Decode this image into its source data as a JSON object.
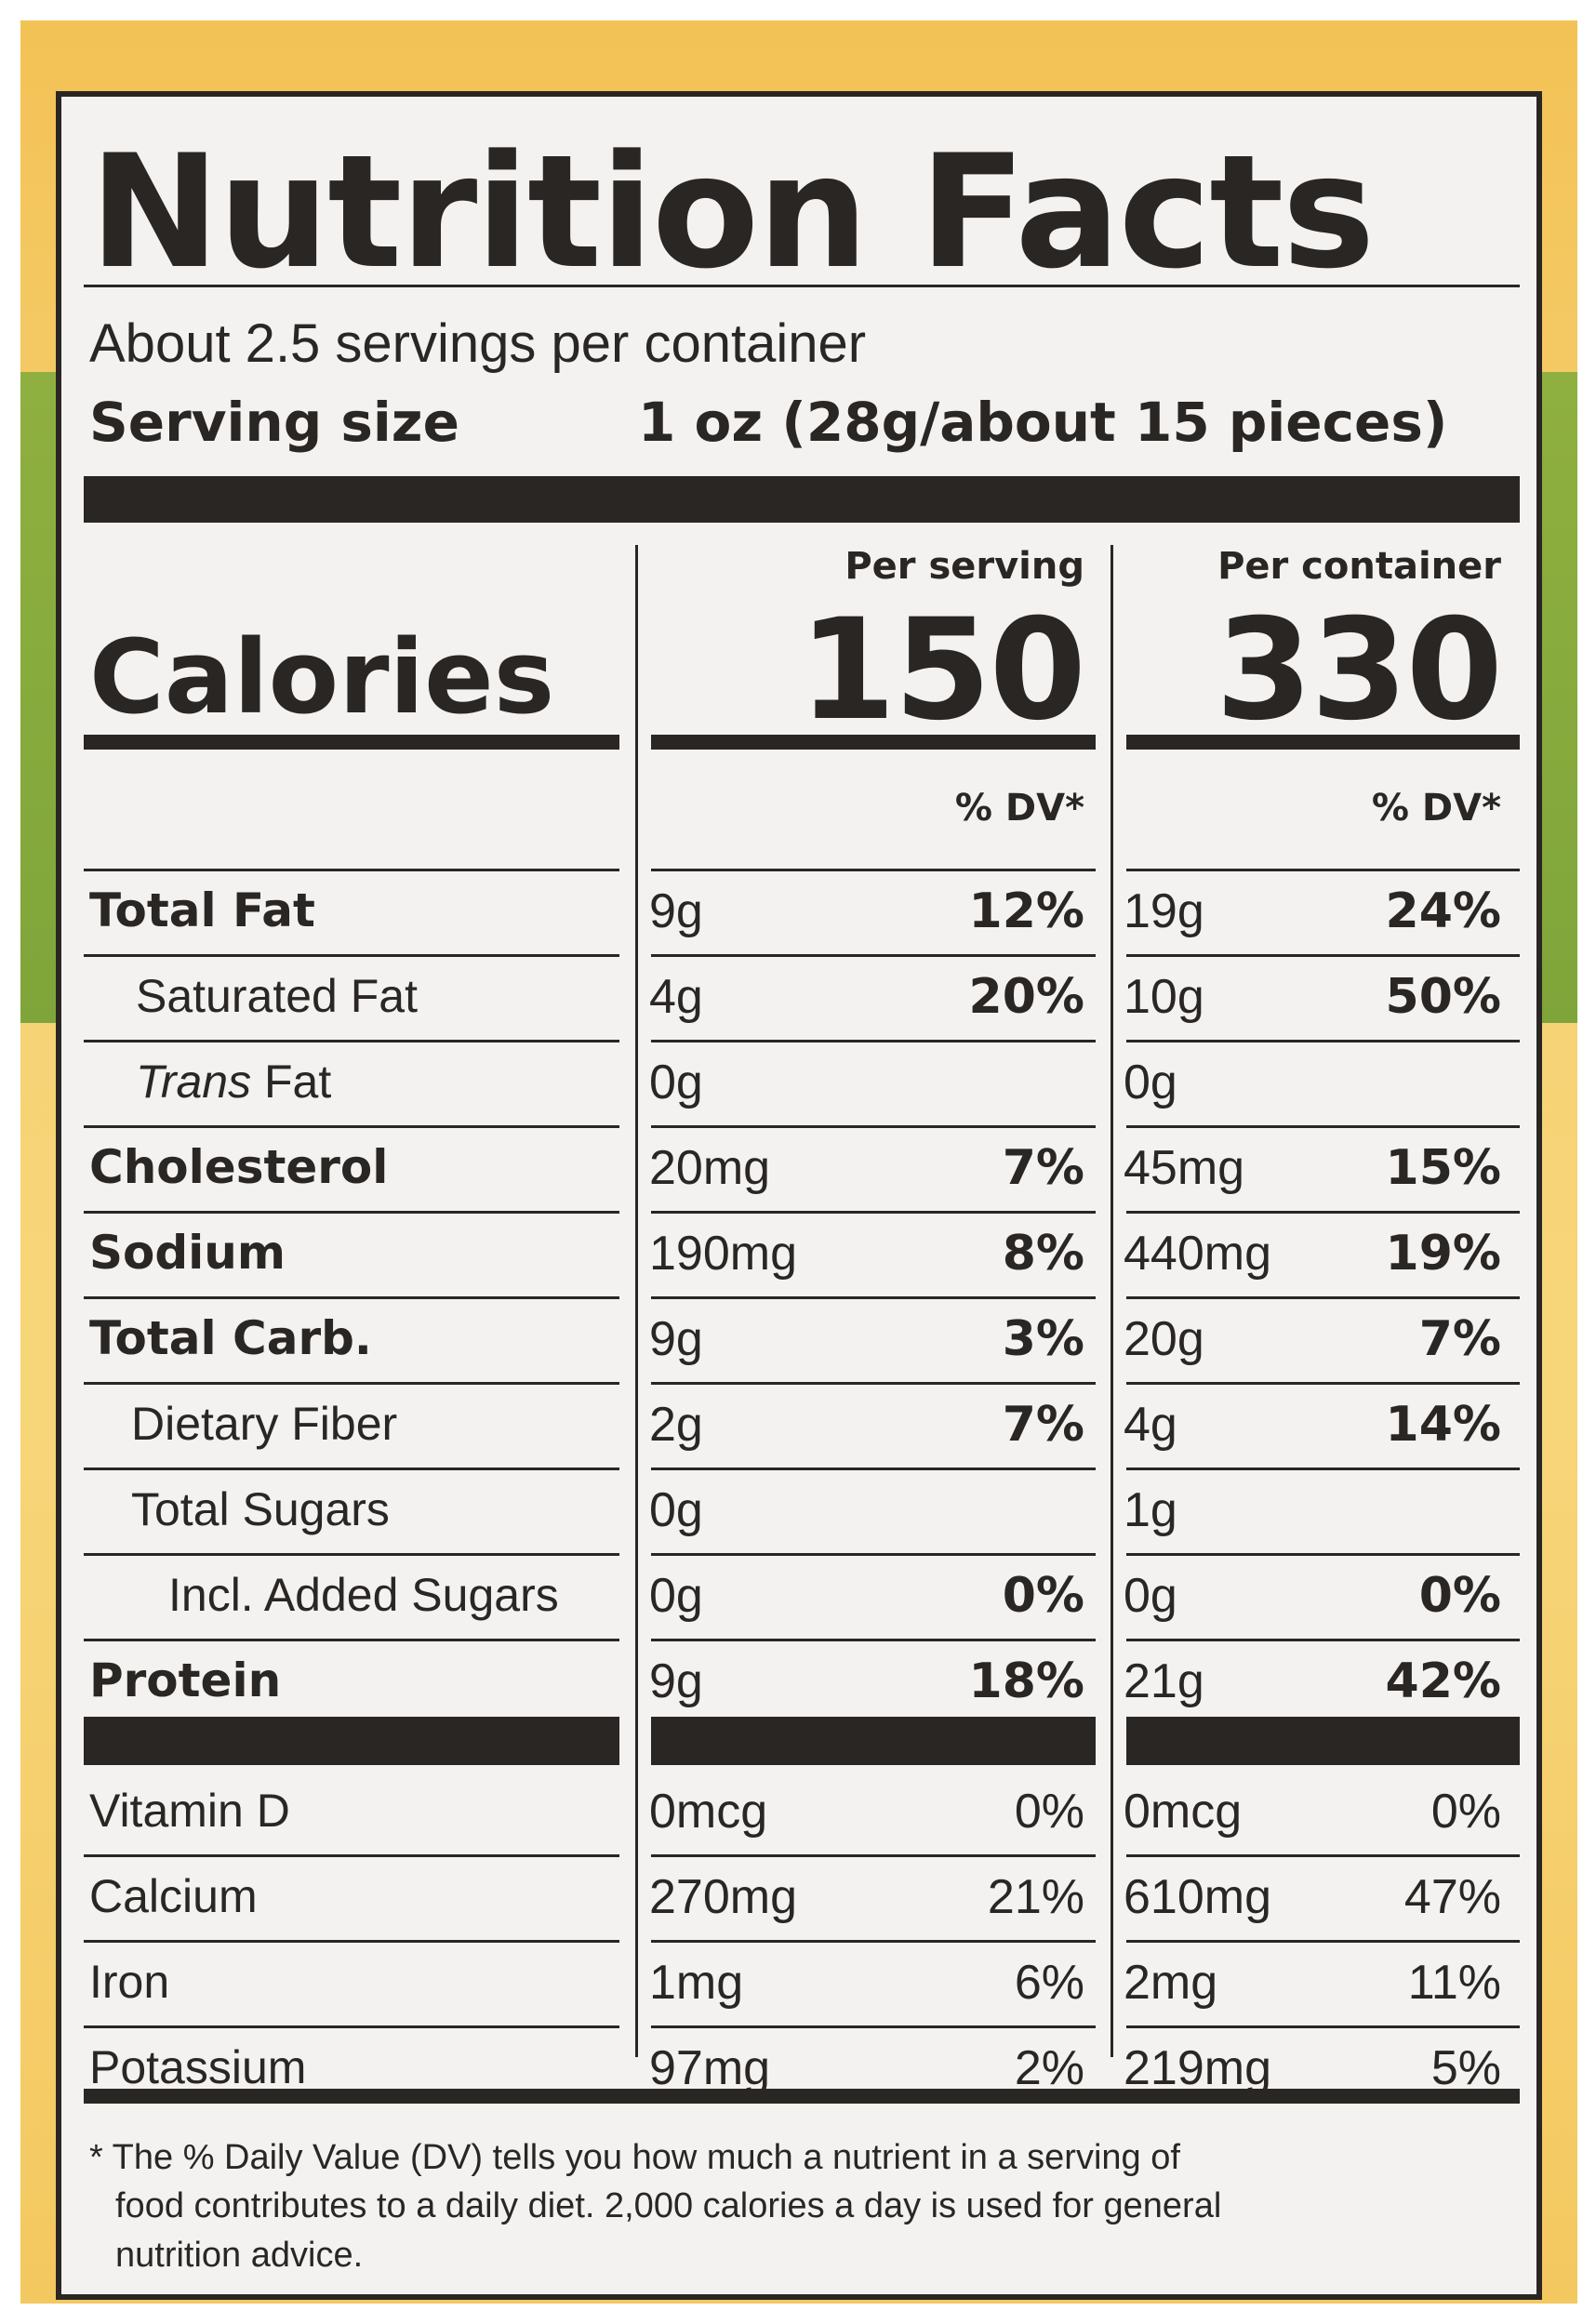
{
  "title": "Nutrition Facts",
  "servings_per_container": "About 2.5 servings per container",
  "serving_size_label": "Serving size",
  "serving_size_value": "1 oz (28g/about 15 pieces)",
  "per_serving_label": "Per serving",
  "per_container_label": "Per container",
  "calories_label": "Calories",
  "calories_serving": "150",
  "calories_container": "330",
  "dv_label": "% DV*",
  "nutrients": [
    {
      "label": "Total Fat",
      "serv": "9g",
      "serv_dv": "12%",
      "cont": "19g",
      "cont_dv": "24%"
    },
    {
      "label": "Saturated Fat",
      "serv": "4g",
      "serv_dv": "20%",
      "cont": "10g",
      "cont_dv": "50%"
    },
    {
      "label_italic": "Trans",
      "label_rest": " Fat",
      "serv": "0g",
      "serv_dv": "",
      "cont": "0g",
      "cont_dv": ""
    },
    {
      "label": "Cholesterol",
      "serv": "20mg",
      "serv_dv": "7%",
      "cont": "45mg",
      "cont_dv": "15%"
    },
    {
      "label": "Sodium",
      "serv": "190mg",
      "serv_dv": "8%",
      "cont": "440mg",
      "cont_dv": "19%"
    },
    {
      "label": "Total Carb.",
      "serv": "9g",
      "serv_dv": "3%",
      "cont": "20g",
      "cont_dv": "7%"
    },
    {
      "label": "Dietary Fiber",
      "serv": "2g",
      "serv_dv": "7%",
      "cont": "4g",
      "cont_dv": "14%"
    },
    {
      "label": "Total Sugars",
      "serv": "0g",
      "serv_dv": "",
      "cont": "1g",
      "cont_dv": ""
    },
    {
      "label": "Incl. Added Sugars",
      "serv": "0g",
      "serv_dv": "0%",
      "cont": "0g",
      "cont_dv": "0%"
    },
    {
      "label": "Protein",
      "serv": "9g",
      "serv_dv": "18%",
      "cont": "21g",
      "cont_dv": "42%"
    }
  ],
  "vitamins": [
    {
      "label": "Vitamin D",
      "serv": "0mcg",
      "serv_dv": "0%",
      "cont": "0mcg",
      "cont_dv": "0%"
    },
    {
      "label": "Calcium",
      "serv": "270mg",
      "serv_dv": "21%",
      "cont": "610mg",
      "cont_dv": "47%"
    },
    {
      "label": "Iron",
      "serv": "1mg",
      "serv_dv": "6%",
      "cont": "2mg",
      "cont_dv": "11%"
    },
    {
      "label": "Potassium",
      "serv": "97mg",
      "serv_dv": "2%",
      "cont": "219mg",
      "cont_dv": "5%"
    }
  ],
  "footnote_line1": "* The % Daily Value (DV) tells you how much a nutrient in a serving of",
  "footnote_line2": "food contributes to a daily diet. 2,000 calories a day is used for general",
  "footnote_line3": "nutrition advice."
}
